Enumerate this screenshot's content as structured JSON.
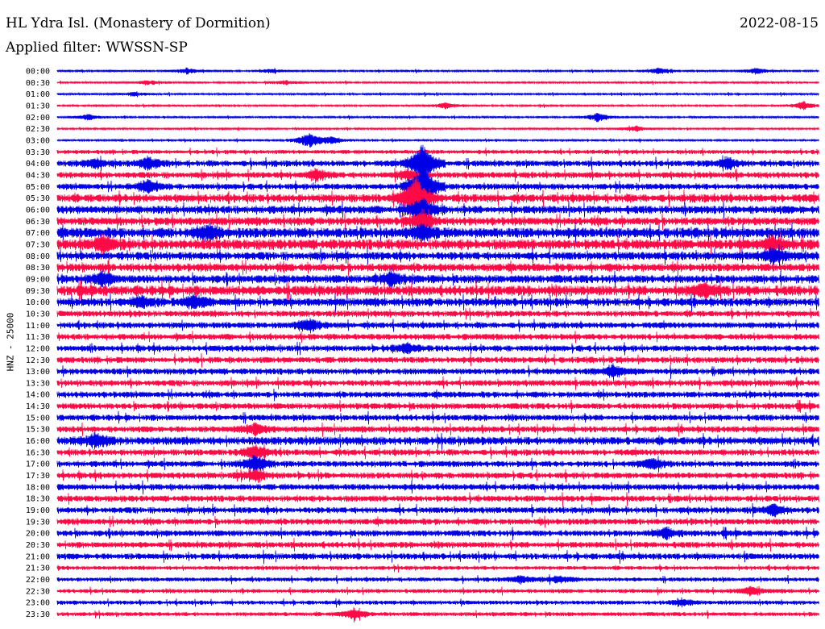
{
  "header": {
    "station": "HL Ydra Isl. (Monastery of Dormition)",
    "date": "2022-08-15",
    "filter": "Applied filter: WWSSN-SP"
  },
  "colors": {
    "even_trace": "#0000e6",
    "odd_trace": "#ff0a46"
  },
  "chart_data": {
    "type": "line",
    "title": "HL Ydra Isl. (Monastery of Dormition)",
    "ylabel": "HNZ - 25000",
    "xlabel": "",
    "grid": false,
    "legend": "none",
    "row_labels": [
      "00:00",
      "00:30",
      "01:00",
      "01:30",
      "02:00",
      "02:30",
      "03:00",
      "03:30",
      "04:00",
      "04:30",
      "05:00",
      "05:30",
      "06:00",
      "06:30",
      "07:00",
      "07:30",
      "08:00",
      "08:30",
      "09:00",
      "09:30",
      "10:00",
      "10:30",
      "11:00",
      "11:30",
      "12:00",
      "12:30",
      "13:00",
      "13:30",
      "14:00",
      "14:30",
      "15:00",
      "15:30",
      "16:00",
      "16:30",
      "17:00",
      "17:30",
      "18:00",
      "18:30",
      "19:00",
      "19:30",
      "20:00",
      "20:30",
      "21:00",
      "21:30",
      "22:00",
      "22:30",
      "23:00",
      "23:30"
    ],
    "noise_level": [
      1,
      1,
      1,
      1,
      1,
      1,
      1,
      2,
      3,
      3,
      3,
      4,
      4,
      4,
      5,
      5,
      4,
      4,
      4,
      5,
      4,
      3,
      3,
      3,
      3,
      3,
      3,
      3,
      3,
      3,
      3,
      3,
      4,
      3,
      3,
      3,
      3,
      3,
      3,
      3,
      3,
      3,
      3,
      2,
      2,
      2,
      2,
      2
    ],
    "events": [
      {
        "row": 0,
        "pos": 0.17,
        "amp": 3
      },
      {
        "row": 0,
        "pos": 0.28,
        "amp": 2
      },
      {
        "row": 0,
        "pos": 0.79,
        "amp": 3
      },
      {
        "row": 0,
        "pos": 0.92,
        "amp": 3
      },
      {
        "row": 1,
        "pos": 0.12,
        "amp": 2
      },
      {
        "row": 1,
        "pos": 0.3,
        "amp": 2
      },
      {
        "row": 2,
        "pos": 0.1,
        "amp": 2
      },
      {
        "row": 3,
        "pos": 0.51,
        "amp": 3
      },
      {
        "row": 3,
        "pos": 0.98,
        "amp": 4
      },
      {
        "row": 4,
        "pos": 0.04,
        "amp": 3
      },
      {
        "row": 4,
        "pos": 0.71,
        "amp": 4
      },
      {
        "row": 5,
        "pos": 0.76,
        "amp": 3
      },
      {
        "row": 6,
        "pos": 0.33,
        "amp": 8
      },
      {
        "row": 6,
        "pos": 0.36,
        "amp": 4
      },
      {
        "row": 8,
        "pos": 0.05,
        "amp": 5
      },
      {
        "row": 8,
        "pos": 0.12,
        "amp": 6
      },
      {
        "row": 8,
        "pos": 0.88,
        "amp": 6
      },
      {
        "row": 8,
        "pos": 0.48,
        "amp": 22
      },
      {
        "row": 9,
        "pos": 0.34,
        "amp": 6
      },
      {
        "row": 9,
        "pos": 0.46,
        "amp": 5
      },
      {
        "row": 10,
        "pos": 0.12,
        "amp": 6
      },
      {
        "row": 10,
        "pos": 0.48,
        "amp": 30
      },
      {
        "row": 11,
        "pos": 0.47,
        "amp": 26
      },
      {
        "row": 12,
        "pos": 0.48,
        "amp": 12
      },
      {
        "row": 13,
        "pos": 0.48,
        "amp": 10
      },
      {
        "row": 14,
        "pos": 0.48,
        "amp": 8
      },
      {
        "row": 14,
        "pos": 0.2,
        "amp": 6
      },
      {
        "row": 15,
        "pos": 0.06,
        "amp": 8
      },
      {
        "row": 15,
        "pos": 0.94,
        "amp": 7
      },
      {
        "row": 16,
        "pos": 0.94,
        "amp": 8
      },
      {
        "row": 18,
        "pos": 0.06,
        "amp": 7
      },
      {
        "row": 18,
        "pos": 0.44,
        "amp": 6
      },
      {
        "row": 19,
        "pos": 0.85,
        "amp": 7
      },
      {
        "row": 20,
        "pos": 0.11,
        "amp": 6
      },
      {
        "row": 20,
        "pos": 0.18,
        "amp": 7
      },
      {
        "row": 22,
        "pos": 0.33,
        "amp": 7
      },
      {
        "row": 24,
        "pos": 0.46,
        "amp": 5
      },
      {
        "row": 26,
        "pos": 0.73,
        "amp": 6
      },
      {
        "row": 31,
        "pos": 0.26,
        "amp": 6
      },
      {
        "row": 32,
        "pos": 0.05,
        "amp": 7
      },
      {
        "row": 33,
        "pos": 0.26,
        "amp": 7
      },
      {
        "row": 34,
        "pos": 0.26,
        "amp": 9
      },
      {
        "row": 34,
        "pos": 0.78,
        "amp": 6
      },
      {
        "row": 35,
        "pos": 0.26,
        "amp": 6
      },
      {
        "row": 38,
        "pos": 0.94,
        "amp": 6
      },
      {
        "row": 40,
        "pos": 0.8,
        "amp": 5
      },
      {
        "row": 44,
        "pos": 0.61,
        "amp": 4
      },
      {
        "row": 44,
        "pos": 0.66,
        "amp": 4
      },
      {
        "row": 45,
        "pos": 0.91,
        "amp": 4
      },
      {
        "row": 46,
        "pos": 0.82,
        "amp": 4
      },
      {
        "row": 47,
        "pos": 0.39,
        "amp": 5
      }
    ]
  }
}
